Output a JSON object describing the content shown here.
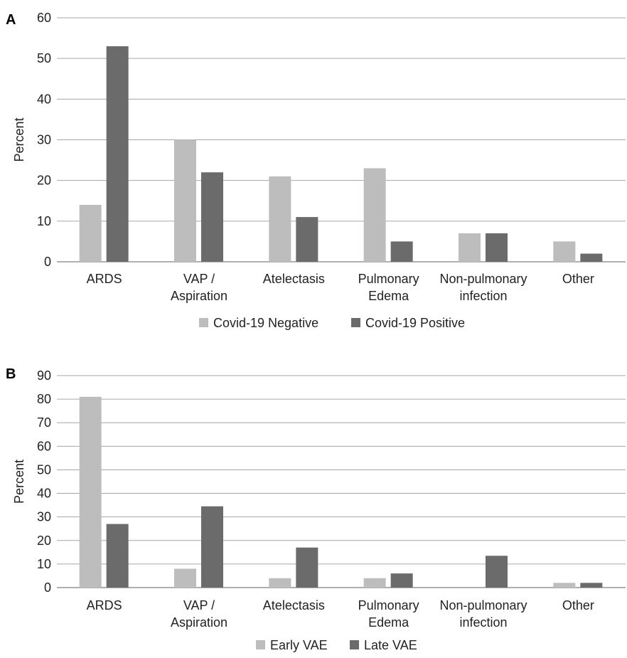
{
  "colors": {
    "series1": "#bdbdbd",
    "series2": "#6b6b6b",
    "grid": "#a6a6a6"
  },
  "chart_data": [
    {
      "panel": "A",
      "type": "bar",
      "ylabel": "Percent",
      "ylim": [
        0,
        60
      ],
      "yticks": [
        0,
        10,
        20,
        30,
        40,
        50,
        60
      ],
      "grid": true,
      "legend_position": "bottom",
      "categories": [
        [
          "ARDS"
        ],
        [
          "VAP /",
          "Aspiration"
        ],
        [
          "Atelectasis"
        ],
        [
          "Pulmonary",
          "Edema"
        ],
        [
          "Non-pulmonary",
          "infection"
        ],
        [
          "Other"
        ]
      ],
      "series": [
        {
          "name": "Covid-19 Negative",
          "values": [
            14,
            30,
            21,
            23,
            7,
            5
          ]
        },
        {
          "name": "Covid-19 Positive",
          "values": [
            53,
            22,
            11,
            5,
            7,
            2
          ]
        }
      ]
    },
    {
      "panel": "B",
      "type": "bar",
      "ylabel": "Percent",
      "ylim": [
        0,
        90
      ],
      "yticks": [
        0,
        10,
        20,
        30,
        40,
        50,
        60,
        70,
        80,
        90
      ],
      "grid": true,
      "legend_position": "bottom",
      "categories": [
        [
          "ARDS"
        ],
        [
          "VAP /",
          "Aspiration"
        ],
        [
          "Atelectasis"
        ],
        [
          "Pulmonary",
          "Edema"
        ],
        [
          "Non-pulmonary",
          "infection"
        ],
        [
          "Other"
        ]
      ],
      "series": [
        {
          "name": "Early VAE",
          "values": [
            81,
            8,
            4,
            4,
            0,
            2
          ]
        },
        {
          "name": "Late VAE",
          "values": [
            27,
            34.5,
            17,
            6,
            13.5,
            2
          ]
        }
      ]
    }
  ]
}
